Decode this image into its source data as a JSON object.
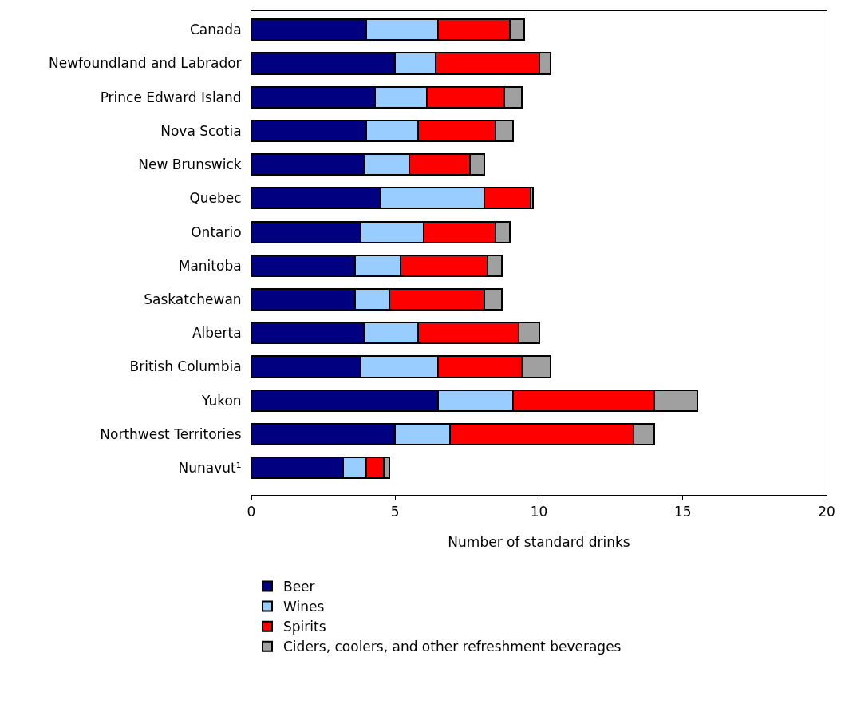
{
  "chart_data": {
    "type": "bar",
    "orientation": "horizontal",
    "stacked": true,
    "xlabel": "Number of standard drinks",
    "categories": [
      "Canada",
      "Newfoundland and Labrador",
      "Prince Edward Island",
      "Nova Scotia",
      "New Brunswick",
      "Quebec",
      "Ontario",
      "Manitoba",
      "Saskatchewan",
      "Alberta",
      "British Columbia",
      "Yukon",
      "Northwest Territories",
      "Nunavut¹"
    ],
    "series": [
      {
        "name": "Beer",
        "color": "#000080",
        "values": [
          4.0,
          5.0,
          4.3,
          4.0,
          3.9,
          4.5,
          3.8,
          3.6,
          3.6,
          3.9,
          3.8,
          6.5,
          5.0,
          3.2
        ]
      },
      {
        "name": "Wines",
        "color": "#99ccff",
        "values": [
          2.5,
          1.4,
          1.8,
          1.8,
          1.6,
          3.6,
          2.2,
          1.6,
          1.2,
          1.9,
          2.7,
          2.6,
          1.9,
          0.8
        ]
      },
      {
        "name": "Spirits",
        "color": "#ff0000",
        "values": [
          2.5,
          3.6,
          2.7,
          2.7,
          2.1,
          1.6,
          2.5,
          3.0,
          3.3,
          3.5,
          2.9,
          4.9,
          6.4,
          0.6
        ]
      },
      {
        "name": "Ciders, coolers, and other refreshment beverages",
        "color": "#a0a0a0",
        "values": [
          0.5,
          0.4,
          0.6,
          0.6,
          0.5,
          0.1,
          0.5,
          0.5,
          0.6,
          0.7,
          1.0,
          1.5,
          0.7,
          0.2
        ]
      }
    ],
    "xlim": [
      0,
      20
    ],
    "xticks": [
      0,
      5,
      10,
      15,
      20
    ],
    "legend": "bottom"
  }
}
